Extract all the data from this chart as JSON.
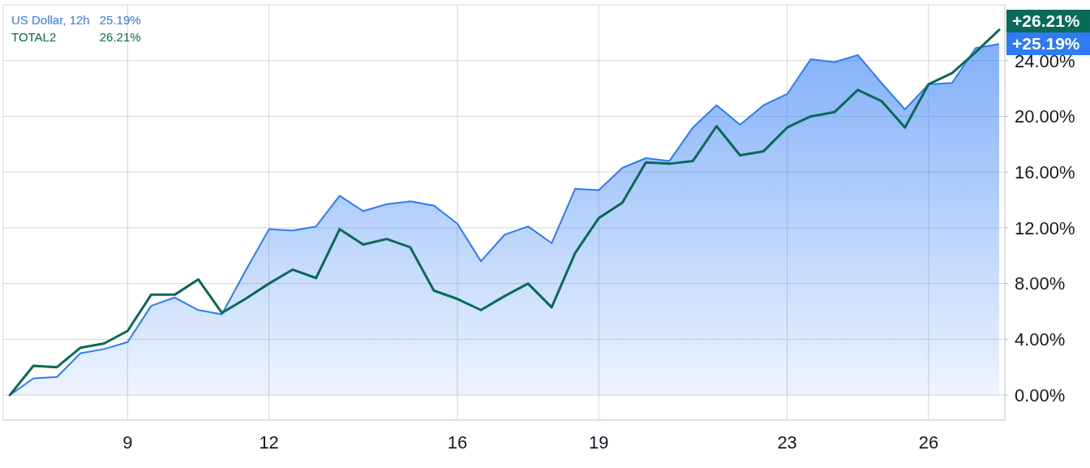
{
  "chart_data": {
    "type": "line",
    "x": [
      6.5,
      7,
      7.5,
      8,
      8.5,
      9,
      9.5,
      10,
      10.5,
      11,
      11.5,
      12,
      12.5,
      13,
      13.5,
      14,
      14.5,
      15,
      15.5,
      16,
      16.5,
      17,
      17.5,
      18,
      18.5,
      19,
      19.5,
      20,
      20.5,
      21,
      21.5,
      22,
      22.5,
      23,
      23.5,
      24,
      24.5,
      25,
      25.5,
      26,
      26.5,
      27,
      27.5
    ],
    "xlim": [
      6.36,
      27.62
    ],
    "xticks": [
      9,
      12,
      16,
      19,
      23,
      26
    ],
    "ylim": [
      -1.8,
      28
    ],
    "yticks": [
      {
        "value": 0,
        "label": "0.00%"
      },
      {
        "value": 4,
        "label": "4.00%"
      },
      {
        "value": 8,
        "label": "8.00%"
      },
      {
        "value": 12,
        "label": "12.00%"
      },
      {
        "value": 16,
        "label": "16.00%"
      },
      {
        "value": 20,
        "label": "20.00%"
      },
      {
        "value": 24,
        "label": "24.00%"
      }
    ],
    "grid": true,
    "legend": "top left",
    "series": [
      {
        "name": "US Dollar, 12h",
        "type": "area",
        "color": "#2e7bf4",
        "values": [
          0,
          1.2,
          1.3,
          3.0,
          3.3,
          3.8,
          6.4,
          7.0,
          6.1,
          5.8,
          8.9,
          11.9,
          11.8,
          12.1,
          14.3,
          13.2,
          13.7,
          13.9,
          13.6,
          12.3,
          9.6,
          11.5,
          12.1,
          10.9,
          14.8,
          14.7,
          16.3,
          17.0,
          16.8,
          19.2,
          20.8,
          19.4,
          20.8,
          21.6,
          24.1,
          23.9,
          24.4,
          22.4,
          20.5,
          22.3,
          22.4,
          24.9,
          25.19
        ]
      },
      {
        "name": "TOTAL2",
        "color": "#086a57",
        "values": [
          0,
          2.1,
          2.0,
          3.4,
          3.7,
          4.6,
          7.2,
          7.2,
          8.3,
          5.9,
          6.9,
          8.0,
          9.0,
          8.4,
          11.9,
          10.8,
          11.2,
          10.6,
          7.5,
          6.9,
          6.1,
          7.1,
          8.0,
          6.3,
          10.2,
          12.7,
          13.8,
          16.7,
          16.6,
          16.8,
          19.3,
          17.2,
          17.5,
          19.2,
          20.0,
          20.3,
          21.9,
          21.1,
          19.2,
          22.3,
          23.1,
          24.6,
          26.21
        ]
      }
    ],
    "annotations": [
      "25.19%",
      "26.21%",
      {
        "text": "+25.19%",
        "x": 27.5,
        "y": 25.19
      },
      {
        "text": "+26.21%",
        "x": 27.5,
        "y": 26.21
      }
    ]
  }
}
